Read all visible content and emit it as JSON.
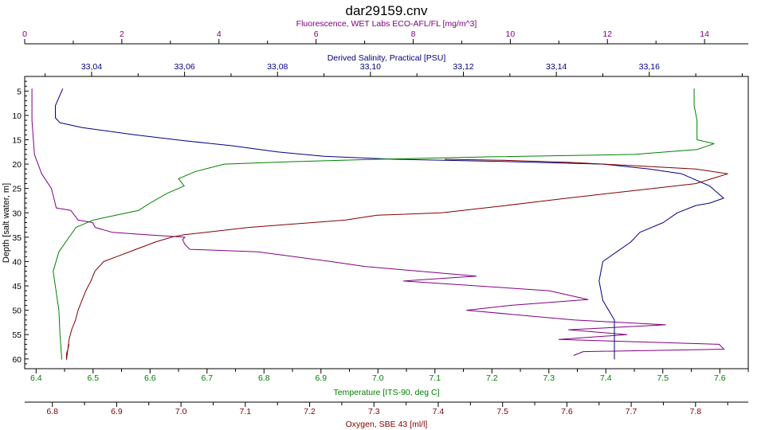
{
  "chart_data": {
    "type": "line",
    "title": "dar29159.cnv",
    "colors": {
      "fluorescence": "#800080",
      "salinity": "#000080",
      "temperature": "#008000",
      "oxygen": "#800000",
      "axis": "#000000"
    },
    "axes": {
      "depth": {
        "label": "Depth [salt water, m]",
        "range": [
          2,
          62
        ],
        "ticks": [
          "5",
          "10",
          "15",
          "20",
          "25",
          "30",
          "35",
          "40",
          "45",
          "50",
          "55",
          "60"
        ],
        "tick_values": [
          5,
          10,
          15,
          20,
          25,
          30,
          35,
          40,
          45,
          50,
          55,
          60
        ]
      },
      "fluorescence": {
        "label": "Fluorescence, WET Labs ECO-AFL/FL [mg/m^3]",
        "range": [
          0,
          14.9
        ],
        "ticks": [
          "0",
          "2",
          "4",
          "6",
          "8",
          "10",
          "12",
          "14"
        ],
        "tick_values": [
          0,
          2,
          4,
          6,
          8,
          10,
          12,
          14
        ]
      },
      "salinity": {
        "label": "Derived Salinity, Practical [PSU]",
        "range": [
          33.0256,
          33.1813
        ],
        "ticks": [
          "33,04",
          "33,06",
          "33,08",
          "33,10",
          "33,12",
          "33,14",
          "33,16"
        ],
        "tick_values": [
          33.04,
          33.06,
          33.08,
          33.1,
          33.12,
          33.14,
          33.16
        ]
      },
      "temperature": {
        "label": "Temperature [ITS-90, deg C]",
        "range": [
          6.38,
          7.65
        ],
        "ticks": [
          "6.4",
          "6.5",
          "6.6",
          "6.7",
          "6.8",
          "6.9",
          "7.0",
          "7.1",
          "7.2",
          "7.3",
          "7.4",
          "7.5",
          "7.6"
        ],
        "tick_values": [
          6.4,
          6.5,
          6.6,
          6.7,
          6.8,
          6.9,
          7.0,
          7.1,
          7.2,
          7.3,
          7.4,
          7.5,
          7.6
        ]
      },
      "oxygen": {
        "label": "Oxygen, SBE 43 [ml/l]",
        "range": [
          6.757,
          7.882
        ],
        "ticks": [
          "6.8",
          "6.9",
          "7.0",
          "7.1",
          "7.2",
          "7.3",
          "7.4",
          "7.5",
          "7.6",
          "7.7",
          "7.8"
        ],
        "tick_values": [
          6.8,
          6.9,
          7.0,
          7.1,
          7.2,
          7.3,
          7.4,
          7.5,
          7.6,
          7.7,
          7.8
        ]
      }
    },
    "series": [
      {
        "axis": "fluorescence",
        "points": [
          [
            0.15,
            4.5
          ],
          [
            0.15,
            11
          ],
          [
            0.2,
            18
          ],
          [
            0.35,
            22
          ],
          [
            0.55,
            25
          ],
          [
            0.6,
            27
          ],
          [
            0.65,
            29
          ],
          [
            0.95,
            29.5
          ],
          [
            1.1,
            31.5
          ],
          [
            1.4,
            32
          ],
          [
            1.45,
            33
          ],
          [
            1.8,
            34
          ],
          [
            2.5,
            34.5
          ],
          [
            3.3,
            35
          ],
          [
            3.25,
            35.5
          ],
          [
            3.3,
            36.5
          ],
          [
            3.4,
            37.5
          ],
          [
            4.8,
            38
          ],
          [
            6.3,
            40
          ],
          [
            7.0,
            41
          ],
          [
            9.3,
            43
          ],
          [
            7.8,
            44
          ],
          [
            10.8,
            46
          ],
          [
            11.6,
            47.8
          ],
          [
            10.0,
            49
          ],
          [
            9.1,
            50
          ],
          [
            10.2,
            51
          ],
          [
            11.3,
            52
          ],
          [
            13.2,
            53
          ],
          [
            11.2,
            54
          ],
          [
            12.4,
            55
          ],
          [
            11.0,
            56
          ],
          [
            14.3,
            57
          ],
          [
            14.4,
            58
          ],
          [
            11.5,
            58.5
          ],
          [
            11.3,
            59.3
          ]
        ]
      },
      {
        "axis": "salinity",
        "points": [
          [
            33.0338,
            4.5
          ],
          [
            33.0322,
            8
          ],
          [
            33.0322,
            10.5
          ],
          [
            33.0332,
            11.5
          ],
          [
            33.038,
            12.5
          ],
          [
            33.0494,
            14
          ],
          [
            33.06,
            15.2
          ],
          [
            33.07,
            16.2
          ],
          [
            33.08,
            17.5
          ],
          [
            33.09,
            18.4
          ],
          [
            33.105,
            19
          ],
          [
            33.13,
            19.5
          ],
          [
            33.15,
            20
          ],
          [
            33.16,
            21
          ],
          [
            33.167,
            22
          ],
          [
            33.173,
            24.5
          ],
          [
            33.176,
            27
          ],
          [
            33.173,
            28
          ],
          [
            33.17,
            28.5
          ],
          [
            33.166,
            30
          ],
          [
            33.163,
            32
          ],
          [
            33.158,
            34
          ],
          [
            33.156,
            36
          ],
          [
            33.153,
            38
          ],
          [
            33.15,
            40
          ],
          [
            33.1492,
            44
          ],
          [
            33.15,
            48
          ],
          [
            33.1525,
            52
          ],
          [
            33.1525,
            55
          ],
          [
            33.1525,
            58
          ],
          [
            33.1525,
            60.1
          ]
        ]
      },
      {
        "axis": "temperature",
        "points": [
          [
            7.555,
            4.5
          ],
          [
            7.555,
            8
          ],
          [
            7.56,
            11
          ],
          [
            7.56,
            15
          ],
          [
            7.59,
            15.8
          ],
          [
            7.56,
            17
          ],
          [
            7.45,
            18
          ],
          [
            7.2,
            18.5
          ],
          [
            7.0,
            19
          ],
          [
            6.85,
            19.5
          ],
          [
            6.73,
            20
          ],
          [
            6.68,
            21.5
          ],
          [
            6.65,
            23
          ],
          [
            6.66,
            24.5
          ],
          [
            6.63,
            26
          ],
          [
            6.6,
            28
          ],
          [
            6.58,
            29.5
          ],
          [
            6.54,
            30.5
          ],
          [
            6.5,
            31.5
          ],
          [
            6.47,
            33
          ],
          [
            6.44,
            38
          ],
          [
            6.43,
            42
          ],
          [
            6.435,
            46
          ],
          [
            6.44,
            50
          ],
          [
            6.442,
            55
          ],
          [
            6.445,
            60.1
          ]
        ]
      },
      {
        "axis": "oxygen",
        "points": [
          [
            6.826,
            57
          ],
          [
            6.824,
            58
          ],
          [
            6.822,
            59
          ],
          [
            6.822,
            60.1
          ],
          [
            6.826,
            56
          ],
          [
            6.83,
            54
          ],
          [
            6.836,
            52
          ],
          [
            6.84,
            50
          ],
          [
            6.846,
            48
          ],
          [
            6.852,
            46
          ],
          [
            6.86,
            44
          ],
          [
            6.866,
            42
          ],
          [
            6.88,
            40
          ],
          [
            6.9,
            39
          ],
          [
            6.93,
            37.5
          ],
          [
            6.96,
            36
          ],
          [
            6.985,
            35
          ],
          [
            7.005,
            34.5
          ],
          [
            7.105,
            33
          ],
          [
            7.255,
            31.5
          ],
          [
            7.305,
            30.5
          ],
          [
            7.405,
            30
          ],
          [
            7.505,
            28.5
          ],
          [
            7.6,
            27
          ],
          [
            7.7,
            25.5
          ],
          [
            7.8,
            24
          ],
          [
            7.85,
            22
          ],
          [
            7.8,
            21
          ],
          [
            7.7,
            20.3
          ],
          [
            7.6,
            19.6
          ],
          [
            7.5,
            19.2
          ],
          [
            7.41,
            19
          ]
        ]
      }
    ]
  }
}
